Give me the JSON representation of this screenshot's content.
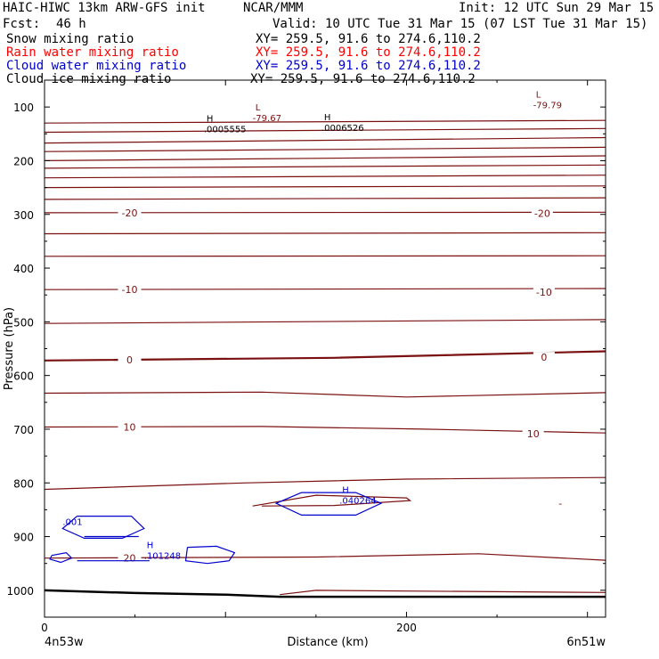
{
  "header": {
    "title_left": "HAIC-HIWC 13km ARW-GFS init",
    "org": "NCAR/MMM",
    "init": "Init: 12 UTC Sun 29 Mar 15",
    "fcst_label": "Fcst:",
    "fcst_value": "46 h",
    "valid": "Valid: 10 UTC Tue 31 Mar 15 (07 LST Tue 31 Mar 15)"
  },
  "fields": [
    {
      "name": "Snow mixing ratio",
      "xy": "XY= 259.5, 91.6 to 274.6,110.2",
      "color": "#000000"
    },
    {
      "name": "Rain water mixing ratio",
      "xy": "XY= 259.5, 91.6 to 274.6,110.2",
      "color": "#ff0000"
    },
    {
      "name": "Cloud water mixing ratio",
      "xy": "XY= 259.5, 91.6 to 274.6,110.2",
      "color": "#0000cc"
    },
    {
      "name": "Cloud ice mixing ratio",
      "xy": "XY= 259.5, 91.6 to 274.6,110.2",
      "color": "#000000"
    }
  ],
  "chart_data": {
    "type": "line",
    "ylabel": "Pressure (hPa)",
    "xlabel": "Distance (km)",
    "x_ticks": [
      0,
      200
    ],
    "x_range": [
      0,
      310
    ],
    "y_ticks": [
      100,
      200,
      300,
      400,
      500,
      600,
      700,
      800,
      900,
      1000
    ],
    "y_range": [
      50,
      1050
    ],
    "x_endpoint_labels": [
      "4n53w",
      "6n51w"
    ],
    "colors": {
      "temp": "#7a1010",
      "ground": "#000000",
      "cloud": "#0000cc"
    },
    "temperature_contours": [
      {
        "label": "",
        "points": [
          [
            0,
            130
          ],
          [
            310,
            125
          ]
        ]
      },
      {
        "label": "",
        "points": [
          [
            0,
            147
          ],
          [
            310,
            140
          ]
        ]
      },
      {
        "label": "",
        "points": [
          [
            0,
            167
          ],
          [
            310,
            157
          ]
        ]
      },
      {
        "label": "",
        "points": [
          [
            0,
            183
          ],
          [
            310,
            175
          ]
        ]
      },
      {
        "label": "",
        "points": [
          [
            0,
            200
          ],
          [
            310,
            191
          ]
        ]
      },
      {
        "label": "",
        "points": [
          [
            0,
            214
          ],
          [
            310,
            208
          ]
        ]
      },
      {
        "label": "",
        "points": [
          [
            0,
            232
          ],
          [
            310,
            227
          ]
        ]
      },
      {
        "label": "",
        "points": [
          [
            0,
            250
          ],
          [
            310,
            247
          ]
        ]
      },
      {
        "label": "",
        "points": [
          [
            0,
            272
          ],
          [
            310,
            269
          ]
        ]
      },
      {
        "label": "-20",
        "points": [
          [
            0,
            297
          ],
          [
            310,
            296
          ]
        ]
      },
      {
        "label": "",
        "points": [
          [
            0,
            336
          ],
          [
            310,
            334
          ]
        ]
      },
      {
        "label": "",
        "points": [
          [
            0,
            378
          ],
          [
            310,
            377
          ]
        ]
      },
      {
        "label": "-10",
        "points": [
          [
            0,
            440
          ],
          [
            310,
            438
          ]
        ]
      },
      {
        "label": "",
        "points": [
          [
            0,
            503
          ],
          [
            310,
            496
          ]
        ]
      },
      {
        "label": "0",
        "points": [
          [
            0,
            572
          ],
          [
            160,
            567
          ],
          [
            310,
            555
          ]
        ]
      },
      {
        "label": "",
        "points": [
          [
            0,
            633
          ],
          [
            120,
            631
          ],
          [
            200,
            640
          ],
          [
            310,
            632
          ]
        ]
      },
      {
        "label": "10",
        "points": [
          [
            0,
            696
          ],
          [
            120,
            695
          ],
          [
            210,
            700
          ],
          [
            310,
            707
          ]
        ]
      },
      {
        "label": "",
        "points": [
          [
            0,
            812
          ],
          [
            110,
            800
          ],
          [
            200,
            793
          ],
          [
            310,
            790
          ]
        ]
      },
      {
        "label": "20",
        "points": [
          [
            0,
            940
          ],
          [
            150,
            938
          ],
          [
            240,
            932
          ],
          [
            310,
            944
          ]
        ]
      }
    ],
    "cold_lobe": [
      [
        115,
        843
      ],
      [
        150,
        823
      ],
      [
        200,
        828
      ],
      [
        202,
        833
      ],
      [
        160,
        842
      ],
      [
        120,
        843
      ]
    ],
    "ground": {
      "label": "",
      "points": [
        [
          0,
          1000
        ],
        [
          50,
          1005
        ],
        [
          100,
          1008
        ],
        [
          130,
          1012
        ],
        [
          160,
          1012
        ],
        [
          310,
          1012
        ]
      ]
    },
    "near_ground": {
      "label": "",
      "points": [
        [
          130,
          1008
        ],
        [
          150,
          1000
        ],
        [
          310,
          1004
        ]
      ]
    },
    "cloud_water_contours": [
      {
        "points": [
          [
            18,
            862
          ],
          [
            48,
            862
          ],
          [
            55,
            885
          ],
          [
            43,
            903
          ],
          [
            22,
            903
          ],
          [
            10,
            885
          ],
          [
            18,
            862
          ]
        ]
      },
      {
        "points": [
          [
            142,
            818
          ],
          [
            172,
            818
          ],
          [
            186,
            838
          ],
          [
            172,
            860
          ],
          [
            142,
            860
          ],
          [
            128,
            838
          ],
          [
            142,
            818
          ]
        ]
      },
      {
        "points": [
          [
            22,
            900
          ],
          [
            52,
            900
          ]
        ]
      },
      {
        "points": [
          [
            18,
            945
          ],
          [
            48,
            945
          ],
          [
            58,
            945
          ]
        ]
      },
      {
        "points": [
          [
            4,
            935
          ],
          [
            12,
            930
          ],
          [
            15,
            940
          ],
          [
            9,
            948
          ],
          [
            3,
            942
          ],
          [
            4,
            935
          ]
        ]
      },
      {
        "points": [
          [
            79,
            920
          ],
          [
            95,
            918
          ],
          [
            105,
            930
          ],
          [
            102,
            945
          ],
          [
            90,
            950
          ],
          [
            78,
            945
          ],
          [
            79,
            920
          ]
        ]
      }
    ],
    "annotations": [
      {
        "type": "H",
        "value": ".0005555",
        "x": 88,
        "y": 140,
        "color": "#000000"
      },
      {
        "type": "L",
        "value": "-79.67",
        "x": 115,
        "y": 120,
        "color": "#7a1010"
      },
      {
        "type": "H",
        "value": ".0006526",
        "x": 153,
        "y": 138,
        "color": "#000000"
      },
      {
        "type": "L",
        "value": "-79.79",
        "x": 270,
        "y": 96,
        "color": "#7a1010"
      },
      {
        "type": "H",
        "value": ".040264",
        "x": 163,
        "y": 832,
        "color": "#0000cc"
      },
      {
        "type": "H",
        "value": ".101248",
        "x": 55,
        "y": 935,
        "color": "#0000cc"
      },
      {
        "type": "",
        "value": ".001",
        "x": 10,
        "y": 872,
        "color": "#0000cc"
      }
    ],
    "extra_marks": [
      {
        "value": "0",
        "x": 276,
        "y": 566,
        "color": "#7a1010"
      },
      {
        "value": "-20",
        "x": 275,
        "y": 298,
        "color": "#7a1010"
      },
      {
        "value": "-10",
        "x": 276,
        "y": 445,
        "color": "#7a1010"
      },
      {
        "value": "10",
        "x": 270,
        "y": 708,
        "color": "#7a1010"
      },
      {
        "value": "-",
        "x": 285,
        "y": 838,
        "color": "#7a1010"
      }
    ]
  }
}
